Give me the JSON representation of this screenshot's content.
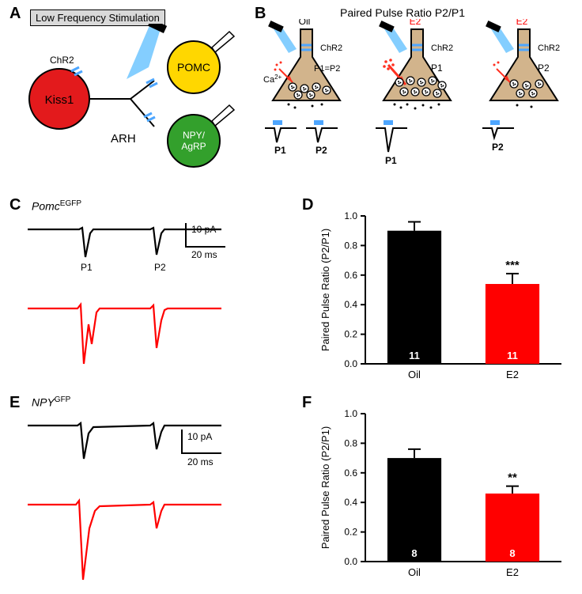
{
  "panelA": {
    "label": "A",
    "box_label": "Low Frequency Stimulation",
    "kiss1": {
      "name": "Kiss1",
      "color": "#e31a1c",
      "chr2": "ChR2"
    },
    "pomc": {
      "name": "POMC",
      "color": "#ffd700"
    },
    "npy": {
      "name": "NPY/\nAgRP",
      "color": "#33a02c"
    },
    "arh": "ARH",
    "chr2_color": "#4da6ff",
    "light_color": "#6ec5ff"
  },
  "panelB": {
    "label": "B",
    "title": "Paired Pulse Ratio  P2/P1",
    "neuron_fill": "#d2b48c",
    "oil_label": "Oil",
    "e2_label": "E2",
    "chr2": "ChR2",
    "ca": "Ca",
    "sup": "2+",
    "p1": "P1",
    "p2": "P2",
    "p1p2": "P1=P2",
    "chr2_color": "#4da6ff",
    "ca_color": "#ff3020"
  },
  "panelC": {
    "label": "C",
    "title_prefix": "Pomc",
    "title_sup": "EGFP",
    "scale_y": "10 pA",
    "scale_x": "20 ms",
    "p1": "P1",
    "p2": "P2",
    "oil_color": "#000000",
    "e2_color": "#ff0000"
  },
  "panelD": {
    "label": "D",
    "ylabel": "Paired Pulse Ratio (P2/P1)",
    "xticks": [
      "Oil",
      "E2"
    ],
    "values": [
      0.9,
      0.54
    ],
    "errors": [
      0.06,
      0.07
    ],
    "n": [
      "11",
      "11"
    ],
    "colors": [
      "#000000",
      "#ff0000"
    ],
    "n_color": "#ffffff",
    "ylim": [
      0,
      1.0
    ],
    "ytick_step": 0.2,
    "sig": "***",
    "axis_color": "#000000",
    "bg": "#ffffff",
    "label_fontsize": 13,
    "tick_fontsize": 12
  },
  "panelE": {
    "label": "E",
    "title_prefix": "NPY",
    "title_sup": "GFP",
    "scale_y": "10 pA",
    "scale_x": "20 ms",
    "oil_color": "#000000",
    "e2_color": "#ff0000"
  },
  "panelF": {
    "label": "F",
    "ylabel": "Paired Pulse Ratio (P2/P1)",
    "xticks": [
      "Oil",
      "E2"
    ],
    "values": [
      0.7,
      0.46
    ],
    "errors": [
      0.06,
      0.05
    ],
    "n": [
      "8",
      "8"
    ],
    "colors": [
      "#000000",
      "#ff0000"
    ],
    "n_color": "#ffffff",
    "ylim": [
      0,
      1.0
    ],
    "ytick_step": 0.2,
    "sig": "**",
    "axis_color": "#000000",
    "bg": "#ffffff",
    "label_fontsize": 13,
    "tick_fontsize": 12
  }
}
